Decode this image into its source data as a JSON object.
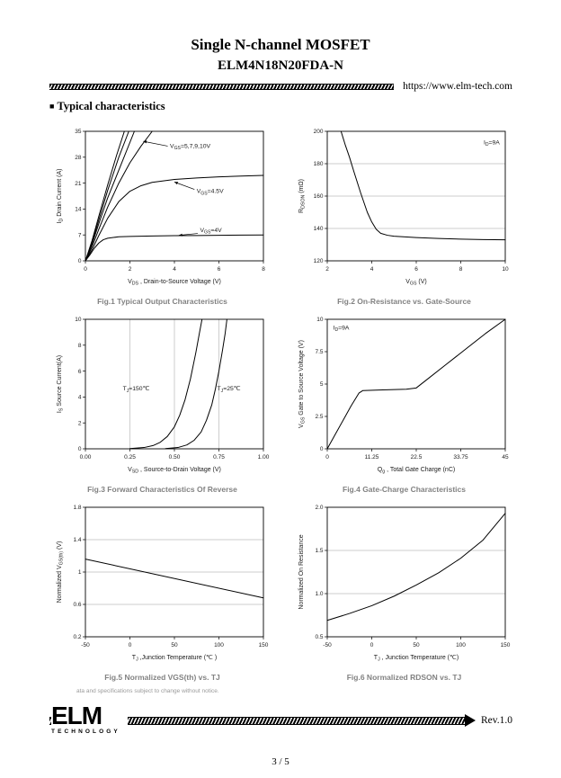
{
  "header": {
    "title": "Single N-channel MOSFET",
    "part_number": "ELM4N18N20FDA-N",
    "url": "https://www.elm-tech.com",
    "section_bullet": "■",
    "section_title": "Typical characteristics"
  },
  "chart_data": [
    {
      "type": "line",
      "caption": "Fig.1 Typical Output Characteristics",
      "xlabel": "V~DS~ , Drain-to-Source Voltage (V)",
      "ylabel": "I~D~ Drain Current (A)",
      "xlim": [
        0,
        8
      ],
      "ylim": [
        0,
        35
      ],
      "xticks": [
        0,
        2,
        4,
        6,
        8
      ],
      "xtick_labels": [
        "0",
        "2",
        "4",
        "6",
        "8"
      ],
      "yticks": [
        0,
        7,
        14,
        21,
        28,
        35
      ],
      "ytick_labels": [
        "0",
        "7",
        "14",
        "21",
        "28",
        "35"
      ],
      "grid": {
        "x": false,
        "y": false
      },
      "series": [
        {
          "name": "VGS=10V",
          "points": [
            [
              0,
              0
            ],
            [
              0.3,
              5.5
            ],
            [
              0.6,
              12
            ],
            [
              1.0,
              20.5
            ],
            [
              1.4,
              28.5
            ],
            [
              1.75,
              35
            ]
          ]
        },
        {
          "name": "VGS=9V",
          "points": [
            [
              0,
              0
            ],
            [
              0.3,
              5
            ],
            [
              0.6,
              11
            ],
            [
              1.0,
              19
            ],
            [
              1.5,
              28
            ],
            [
              1.95,
              35
            ]
          ]
        },
        {
          "name": "VGS=7V",
          "points": [
            [
              0,
              0
            ],
            [
              0.3,
              4.5
            ],
            [
              0.6,
              10
            ],
            [
              1.0,
              17
            ],
            [
              1.6,
              26
            ],
            [
              2.2,
              35
            ]
          ]
        },
        {
          "name": "VGS=5V",
          "points": [
            [
              0,
              0
            ],
            [
              0.3,
              3.8
            ],
            [
              0.6,
              8.5
            ],
            [
              1.0,
              14.5
            ],
            [
              1.5,
              21
            ],
            [
              2.0,
              26.5
            ],
            [
              2.5,
              31
            ],
            [
              3.0,
              35
            ]
          ]
        },
        {
          "name": "VGS=4.5V",
          "points": [
            [
              0,
              0
            ],
            [
              0.3,
              3
            ],
            [
              0.6,
              6.8
            ],
            [
              1.0,
              11.5
            ],
            [
              1.5,
              16
            ],
            [
              2.0,
              18.8
            ],
            [
              2.5,
              20.3
            ],
            [
              3.0,
              21.2
            ],
            [
              4.0,
              22
            ],
            [
              5.0,
              22.4
            ],
            [
              6.0,
              22.7
            ],
            [
              7.0,
              22.9
            ],
            [
              8.0,
              23.1
            ]
          ]
        },
        {
          "name": "VGS=4V",
          "points": [
            [
              0,
              0
            ],
            [
              0.2,
              1.6
            ],
            [
              0.4,
              3.4
            ],
            [
              0.6,
              4.8
            ],
            [
              0.8,
              5.7
            ],
            [
              1.0,
              6.1
            ],
            [
              1.5,
              6.5
            ],
            [
              2.0,
              6.6
            ],
            [
              3.0,
              6.7
            ],
            [
              4.0,
              6.8
            ],
            [
              5.0,
              6.85
            ],
            [
              6.0,
              6.9
            ],
            [
              7.0,
              6.95
            ],
            [
              8.0,
              7.0
            ]
          ]
        }
      ],
      "annotations": [
        {
          "text": "V~GS~=5,7,9,10V",
          "x": 3.8,
          "y": 30.5,
          "anchor": "start",
          "arrow": [
            3.7,
            31,
            2.6,
            32.3
          ]
        },
        {
          "text": "V~GS~=4.5V",
          "x": 5.0,
          "y": 18.3,
          "anchor": "start",
          "arrow": [
            4.9,
            19.3,
            4.0,
            21.3
          ]
        },
        {
          "text": "V~GS~=4V",
          "x": 5.15,
          "y": 7.8,
          "anchor": "start",
          "arrow": [
            5.05,
            7.4,
            4.2,
            6.9
          ]
        }
      ]
    },
    {
      "type": "line",
      "caption": "Fig.2 On-Resistance vs. Gate-Source",
      "xlabel": "V~GS~ (V)",
      "ylabel": "R~DSON~ (mΩ)",
      "xlim": [
        2,
        10
      ],
      "ylim": [
        120,
        200
      ],
      "xticks": [
        2,
        4,
        6,
        8,
        10
      ],
      "xtick_labels": [
        "2",
        "4",
        "6",
        "8",
        "10"
      ],
      "yticks": [
        120,
        140,
        160,
        180,
        200
      ],
      "ytick_labels": [
        "120",
        "140",
        "160",
        "180",
        "200"
      ],
      "grid": {
        "x": false,
        "y": true
      },
      "series": [
        {
          "name": "ID=9A",
          "points": [
            [
              2.62,
              200
            ],
            [
              2.8,
              192
            ],
            [
              3.0,
              184
            ],
            [
              3.2,
              175
            ],
            [
              3.5,
              162
            ],
            [
              3.8,
              150
            ],
            [
              4.0,
              144
            ],
            [
              4.2,
              139.5
            ],
            [
              4.4,
              137
            ],
            [
              4.7,
              135.8
            ],
            [
              5.0,
              135.2
            ],
            [
              5.5,
              134.8
            ],
            [
              6.0,
              134.4
            ],
            [
              7.0,
              133.8
            ],
            [
              8.0,
              133.4
            ],
            [
              9.0,
              133.1
            ],
            [
              10.0,
              133
            ]
          ]
        }
      ],
      "annotations": [
        {
          "text": "I~D~=9A",
          "x": 9.75,
          "y": 192,
          "anchor": "end"
        }
      ]
    },
    {
      "type": "line",
      "caption": "Fig.3 Forward Characteristics Of Reverse",
      "xlabel": "V~SD~ , Source-to-Drain Voltage (V)",
      "ylabel": "I~S~ Source Current(A)",
      "xlim": [
        0,
        1
      ],
      "ylim": [
        0,
        10
      ],
      "xticks": [
        0,
        0.25,
        0.5,
        0.75,
        1
      ],
      "xtick_labels": [
        "0.00",
        "0.25",
        "0.50",
        "0.75",
        "1.00"
      ],
      "yticks": [
        0,
        2,
        4,
        6,
        8,
        10
      ],
      "ytick_labels": [
        "0",
        "2",
        "4",
        "6",
        "8",
        "10"
      ],
      "grid": {
        "x": true,
        "y": false
      },
      "series": [
        {
          "name": "TJ=150C",
          "points": [
            [
              0.25,
              0.02
            ],
            [
              0.33,
              0.1
            ],
            [
              0.38,
              0.25
            ],
            [
              0.42,
              0.5
            ],
            [
              0.46,
              0.95
            ],
            [
              0.5,
              1.7
            ],
            [
              0.53,
              2.6
            ],
            [
              0.56,
              3.8
            ],
            [
              0.59,
              5.4
            ],
            [
              0.62,
              7.4
            ],
            [
              0.64,
              8.9
            ],
            [
              0.655,
              10
            ]
          ]
        },
        {
          "name": "TJ=25C",
          "points": [
            [
              0.45,
              0.02
            ],
            [
              0.52,
              0.1
            ],
            [
              0.57,
              0.3
            ],
            [
              0.61,
              0.65
            ],
            [
              0.65,
              1.3
            ],
            [
              0.68,
              2.2
            ],
            [
              0.71,
              3.4
            ],
            [
              0.73,
              4.6
            ],
            [
              0.75,
              6.0
            ],
            [
              0.77,
              7.6
            ],
            [
              0.785,
              8.9
            ],
            [
              0.795,
              10
            ]
          ]
        }
      ],
      "annotations": [
        {
          "text": "T~J~=150℃",
          "x": 0.21,
          "y": 4.5,
          "anchor": "start"
        },
        {
          "text": "T~J~=25℃",
          "x": 0.74,
          "y": 4.5,
          "anchor": "start"
        }
      ]
    },
    {
      "type": "line",
      "caption": "Fig.4 Gate-Charge Characteristics",
      "xlabel": "Q~g~ , Total Gate Charge (nC)",
      "ylabel": "V~GS~  Gate to Source Voltage (V)",
      "xlim": [
        0,
        45
      ],
      "ylim": [
        0,
        10
      ],
      "xticks": [
        0,
        11.25,
        22.5,
        33.75,
        45
      ],
      "xtick_labels": [
        "0",
        "11.25",
        "22.5",
        "33.75",
        "45"
      ],
      "yticks": [
        0,
        2.5,
        5,
        7.5,
        10
      ],
      "ytick_labels": [
        "0",
        "2.5",
        "5",
        "7.5",
        "10"
      ],
      "grid": {
        "x": false,
        "y": false
      },
      "series": [
        {
          "name": "ID=9A",
          "points": [
            [
              0,
              0
            ],
            [
              2,
              1.1
            ],
            [
              4,
              2.2
            ],
            [
              6,
              3.3
            ],
            [
              8,
              4.3
            ],
            [
              9,
              4.5
            ],
            [
              14,
              4.55
            ],
            [
              20,
              4.6
            ],
            [
              22.5,
              4.7
            ],
            [
              25,
              5.3
            ],
            [
              30,
              6.5
            ],
            [
              35,
              7.7
            ],
            [
              40,
              8.9
            ],
            [
              45,
              10
            ]
          ]
        }
      ],
      "annotations": [
        {
          "text": "I~D~=9A",
          "x": 1.5,
          "y": 9.2,
          "anchor": "start"
        }
      ]
    },
    {
      "type": "line",
      "caption": "Fig.5 Normalized VGS(th) vs. TJ",
      "xlabel": "T~J~ ,Junction Temperature (℃ )",
      "ylabel": "Normalized V~GS(th)~ (V)",
      "xlim": [
        -50,
        150
      ],
      "ylim": [
        0.2,
        1.8
      ],
      "xticks": [
        -50,
        0,
        50,
        100,
        150
      ],
      "xtick_labels": [
        "-50",
        "0",
        "50",
        "100",
        "150"
      ],
      "yticks": [
        0.2,
        0.6,
        1,
        1.4,
        1.8
      ],
      "ytick_labels": [
        "0.2",
        "0.6",
        "1",
        "1.4",
        "1.8"
      ],
      "grid": {
        "x": false,
        "y": true
      },
      "series": [
        {
          "name": "Normalized VGS(th)",
          "points": [
            [
              -50,
              1.16
            ],
            [
              150,
              0.68
            ]
          ]
        }
      ],
      "annotations": []
    },
    {
      "type": "line",
      "caption": "Fig.6 Normalized RDSON vs. TJ",
      "xlabel": "T~J~ , Junction Temperature (℃)",
      "ylabel": "Normalized On Resistance",
      "xlim": [
        -50,
        150
      ],
      "ylim": [
        0.5,
        2
      ],
      "xticks": [
        -50,
        0,
        50,
        100,
        150
      ],
      "xtick_labels": [
        "-50",
        "0",
        "50",
        "100",
        "150"
      ],
      "yticks": [
        0.5,
        1,
        1.5,
        2
      ],
      "ytick_labels": [
        "0.5",
        "1.0",
        "1.5",
        "2.0"
      ],
      "grid": {
        "x": false,
        "y": true
      },
      "series": [
        {
          "name": "Normalized RDSON",
          "points": [
            [
              -50,
              0.69
            ],
            [
              -25,
              0.77
            ],
            [
              0,
              0.86
            ],
            [
              25,
              0.97
            ],
            [
              50,
              1.1
            ],
            [
              75,
              1.24
            ],
            [
              100,
              1.41
            ],
            [
              125,
              1.62
            ],
            [
              150,
              1.93
            ]
          ]
        }
      ],
      "annotations": []
    }
  ],
  "footer": {
    "note": "ata and specifications subject to change without notice.",
    "logo_text": "ELM",
    "logo_sub": "TECHNOLOGY",
    "revision": "Rev.1.0",
    "page": "3 / 5"
  }
}
